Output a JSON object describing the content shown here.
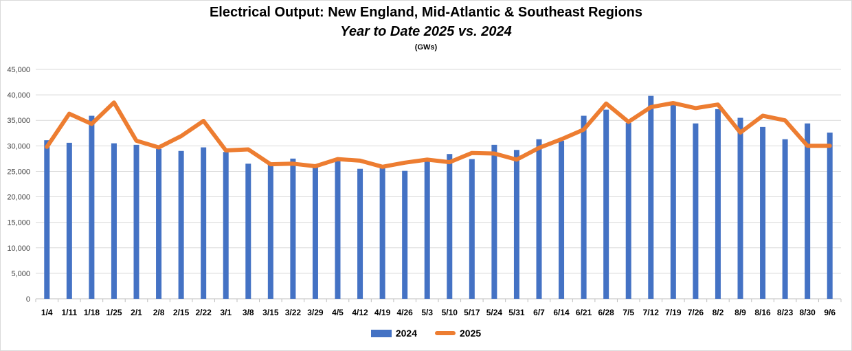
{
  "chart_data": {
    "type": "bar",
    "title": "Electrical Output:  New England, Mid-Atlantic & Southeast Regions",
    "subtitle": "Year to Date 2025 vs. 2024",
    "unit_note": "(GWs)",
    "categories": [
      "1/4",
      "1/11",
      "1/18",
      "1/25",
      "2/1",
      "2/8",
      "2/15",
      "2/22",
      "3/1",
      "3/8",
      "3/15",
      "3/22",
      "3/29",
      "4/5",
      "4/12",
      "4/19",
      "4/26",
      "5/3",
      "5/10",
      "5/17",
      "5/24",
      "5/31",
      "6/7",
      "6/14",
      "6/21",
      "6/28",
      "7/5",
      "7/12",
      "7/19",
      "7/26",
      "8/2",
      "8/9",
      "8/16",
      "8/23",
      "8/30",
      "9/6"
    ],
    "series": [
      {
        "name": "2024",
        "type": "bar",
        "color": "#4472C4",
        "values": [
          31100,
          30600,
          35900,
          30500,
          30200,
          29400,
          29000,
          29700,
          28800,
          26500,
          26300,
          27500,
          26000,
          27000,
          25500,
          25900,
          25100,
          27000,
          28400,
          27400,
          30200,
          29200,
          31300,
          31000,
          35900,
          37100,
          34500,
          39800,
          38100,
          34400,
          37200,
          35500,
          33700,
          31300,
          34400,
          32600
        ]
      },
      {
        "name": "2025",
        "type": "line",
        "color": "#ED7D31",
        "values": [
          29800,
          36300,
          34300,
          38500,
          31000,
          29700,
          31900,
          34900,
          29100,
          29300,
          26400,
          26500,
          26000,
          27400,
          27100,
          25900,
          26700,
          27300,
          26800,
          28600,
          28500,
          27300,
          29600,
          31300,
          33200,
          38300,
          34700,
          37600,
          38400,
          37400,
          38100,
          32600,
          35900,
          35000,
          30000,
          30000
        ]
      }
    ],
    "ylim": [
      0,
      45000
    ],
    "yticks": [
      0,
      5000,
      10000,
      15000,
      20000,
      25000,
      30000,
      35000,
      40000,
      45000
    ],
    "ytick_labels": [
      "0",
      "5,000",
      "10,000",
      "15,000",
      "20,000",
      "25,000",
      "30,000",
      "35,000",
      "40,000",
      "45,000"
    ],
    "grid": true,
    "legend_position": "bottom"
  }
}
